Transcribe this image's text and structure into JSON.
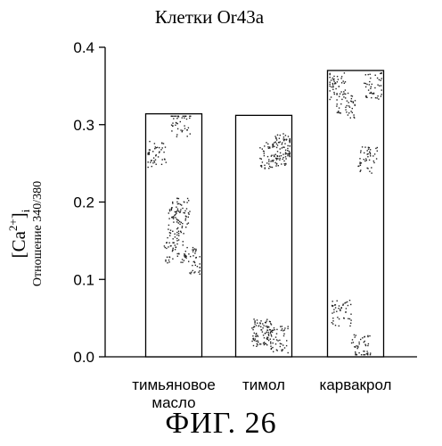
{
  "chart_data": {
    "type": "bar",
    "title": "Клетки Or43a",
    "ylabel_main": "[Ca2+]i",
    "ylabel_sub": "Отношение 340/380",
    "ylim": [
      0.0,
      0.4
    ],
    "yticks": [
      "0.0",
      "0.1",
      "0.2",
      "0.3",
      "0.4"
    ],
    "ytick_values": [
      0.0,
      0.1,
      0.2,
      0.3,
      0.4
    ],
    "categories": [
      [
        "тимьяновое",
        "масло"
      ],
      [
        "тимол"
      ],
      [
        "карвакрол"
      ]
    ],
    "values": [
      0.314,
      0.312,
      0.37
    ],
    "grid": false
  },
  "figure_caption": "ФИГ. 26",
  "colors": {
    "bar_fill": "#ffffff",
    "stroke": "#000000",
    "stipple": "#222222"
  }
}
